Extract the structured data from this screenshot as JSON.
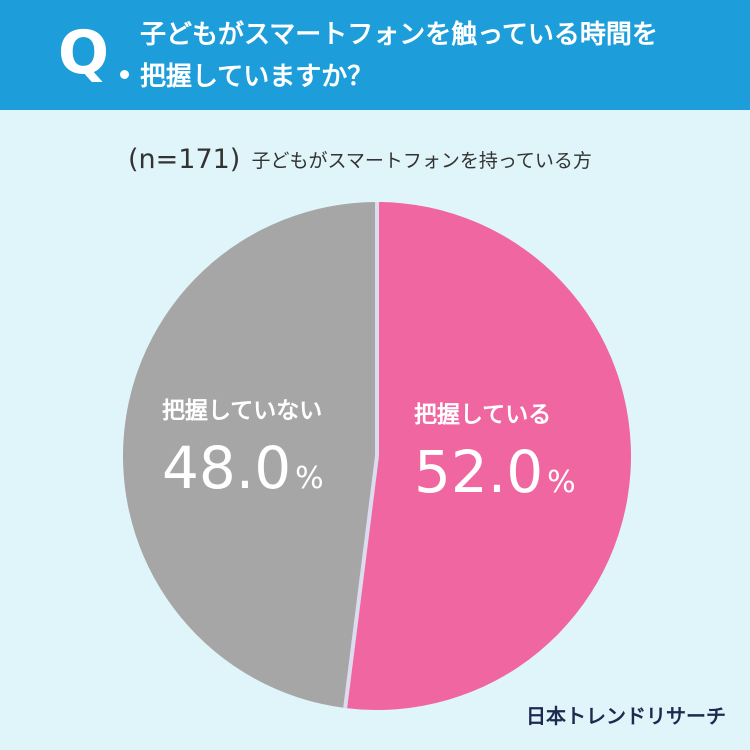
{
  "header": {
    "q_mark": "Q",
    "question_line1": "子どもがスマートフォンを触っている時間を",
    "question_line2": "把握していますか？"
  },
  "sample": {
    "n_label": "(n=171)",
    "description": "子どもがスマートフォンを持っている方"
  },
  "chart_data": {
    "type": "pie",
    "title": "",
    "start": "12 o'clock, clockwise",
    "slices": [
      {
        "label": "把握している",
        "value": 52.0,
        "display": "52.0",
        "unit": "%",
        "color": "#f066a0"
      },
      {
        "label": "把握していない",
        "value": 48.0,
        "display": "48.0",
        "unit": "%",
        "color": "#a6a6a6"
      }
    ],
    "separator_color": "#dcdcf0"
  },
  "logo": {
    "text": "日本トレンドリサーチ",
    "color": "#1b2a4e"
  }
}
